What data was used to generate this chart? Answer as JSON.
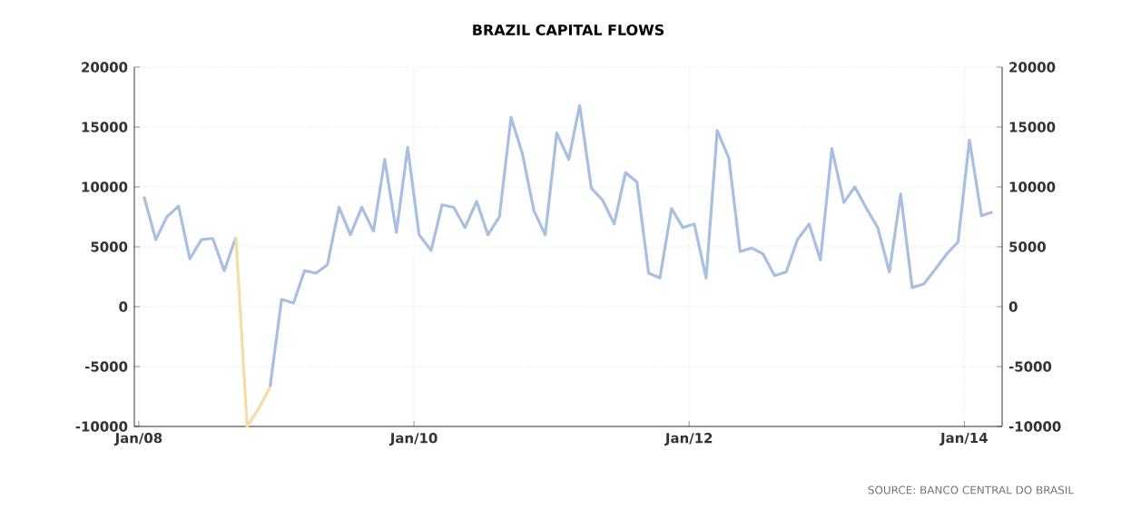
{
  "chart_data": {
    "type": "line",
    "title": "BRAZIL CAPITAL FLOWS",
    "x": [
      "2008-01-15",
      "2008-02-15",
      "2008-03-15",
      "2008-04-15",
      "2008-05-15",
      "2008-06-15",
      "2008-07-15",
      "2008-08-15",
      "2008-09-15",
      "2008-10-15",
      "2008-11-15",
      "2008-12-15",
      "2009-01-15",
      "2009-02-15",
      "2009-03-15",
      "2009-04-15",
      "2009-05-15",
      "2009-06-15",
      "2009-07-15",
      "2009-08-15",
      "2009-09-15",
      "2009-10-15",
      "2009-11-15",
      "2009-12-15",
      "2010-01-15",
      "2010-02-15",
      "2010-03-15",
      "2010-04-15",
      "2010-05-15",
      "2010-06-15",
      "2010-07-15",
      "2010-08-15",
      "2010-09-15",
      "2010-10-15",
      "2010-11-15",
      "2010-12-15",
      "2011-01-15",
      "2011-02-15",
      "2011-03-15",
      "2011-04-15",
      "2011-05-15",
      "2011-06-15",
      "2011-07-15",
      "2011-08-15",
      "2011-09-15",
      "2011-10-15",
      "2011-11-15",
      "2011-12-15",
      "2012-01-15",
      "2012-02-15",
      "2012-03-15",
      "2012-04-15",
      "2012-05-15",
      "2012-06-15",
      "2012-07-15",
      "2012-08-15",
      "2012-09-15",
      "2012-10-15",
      "2012-11-15",
      "2012-12-15",
      "2013-01-15",
      "2013-02-15",
      "2013-03-15",
      "2013-04-15",
      "2013-05-15",
      "2013-06-15",
      "2013-07-15",
      "2013-08-15",
      "2013-09-15",
      "2013-10-15",
      "2013-11-15",
      "2013-12-15",
      "2014-01-15",
      "2014-02-15",
      "2014-03-15"
    ],
    "series": [
      {
        "color": "#a9bfe1",
        "values": [
          9200,
          5600,
          7500,
          8400,
          4000,
          5600,
          5700,
          3000,
          5800,
          null,
          null,
          -6700,
          600,
          300,
          3000,
          2800,
          3500,
          8300,
          6000,
          8300,
          6300,
          12300,
          6200,
          13300,
          6000,
          4700,
          8500,
          8300,
          6600,
          8800,
          6000,
          7500,
          15800,
          12800,
          8000,
          6000,
          14500,
          12300,
          16800,
          9900,
          8900,
          6900,
          11200,
          10400,
          2800,
          2400,
          8200,
          6600,
          6900,
          2400,
          14700,
          12400,
          4600,
          4900,
          4400,
          2600,
          2900,
          5600,
          6900,
          3900,
          13200,
          8700,
          10000,
          8200,
          6600,
          2900,
          9400,
          1600,
          1900,
          3100,
          4400,
          5400,
          13900,
          7600,
          7900
        ]
      },
      {
        "color": "#f8dba6",
        "x": [
          "2008-09-15",
          "2008-10-15",
          "2008-11-15",
          "2008-12-15"
        ],
        "values": [
          5800,
          -10000,
          -8500,
          -6700
        ]
      }
    ],
    "xlim": [
      "2007-12-20",
      "2014-04-10"
    ],
    "xticks": [
      {
        "value": "2008-01",
        "label": "Jan/08"
      },
      {
        "value": "2010-01",
        "label": "Jan/10"
      },
      {
        "value": "2012-01",
        "label": "Jan/12"
      },
      {
        "value": "2014-01",
        "label": "Jan/14"
      }
    ],
    "ylim": [
      -10000,
      20000
    ],
    "yticks": [
      -10000,
      -5000,
      0,
      5000,
      10000,
      15000,
      20000
    ],
    "y2lim": [
      -10000,
      20000
    ],
    "y2ticks": [
      -10000,
      -5000,
      0,
      5000,
      10000,
      15000,
      20000
    ],
    "grid": true,
    "annotations": [
      "SOURCE: BANCO CENTRAL DO BRASIL"
    ]
  }
}
